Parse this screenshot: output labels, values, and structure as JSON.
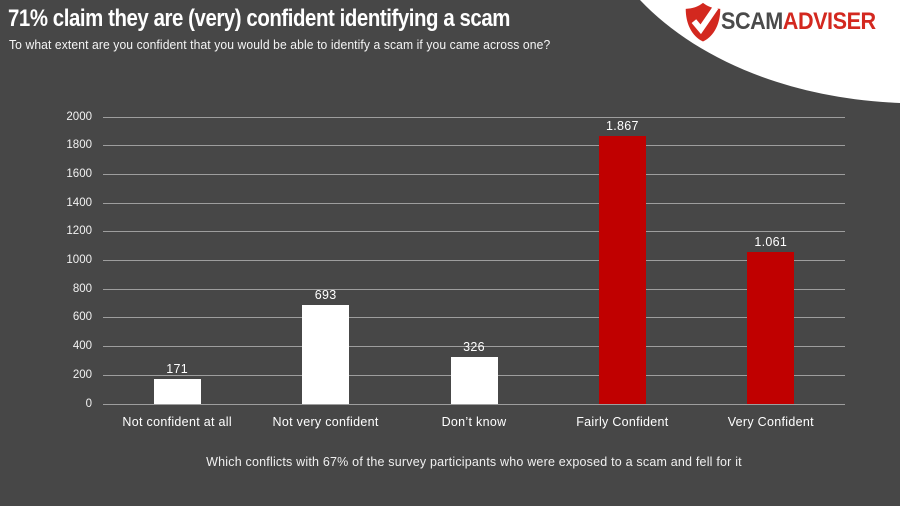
{
  "header": {
    "title": "71% claim they are (very) confident identifying a scam",
    "subtitle": "To what extent are you confident that you would be able to identify a scam if you came across one?"
  },
  "logo": {
    "brand_part1": "SCAM",
    "brand_part2": "ADVISER",
    "shield_color": "#d3281f",
    "check_color": "#ffffff",
    "scam_text_color": "#4a4a4a",
    "adviser_text_color": "#d3281f"
  },
  "chart_data": {
    "type": "bar",
    "categories": [
      "Not confident at all",
      "Not very confident",
      "Don’t know",
      "Fairly Confident",
      "Very Confident"
    ],
    "values": [
      171,
      693,
      326,
      1867,
      1061
    ],
    "value_labels": [
      "171",
      "693",
      "326",
      "1.867",
      "1.061"
    ],
    "bar_colors": [
      "#ffffff",
      "#ffffff",
      "#ffffff",
      "#c00000",
      "#c00000"
    ],
    "title": "",
    "xlabel": "",
    "ylabel": "",
    "ylim": [
      0,
      2000
    ],
    "ytick_step": 200,
    "grid": true,
    "legend": "none"
  },
  "footnote": "Which conflicts with 67% of the survey participants who were exposed to a scam and fell for it",
  "colors": {
    "background": "#474747",
    "gridline": "#9e9e9e",
    "text": "#ffffff",
    "bar_white": "#ffffff",
    "bar_red": "#c00000",
    "corner_shape": "#ffffff"
  }
}
